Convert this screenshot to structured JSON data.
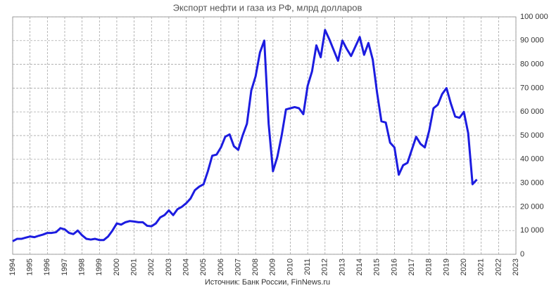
{
  "chart_data": {
    "type": "line",
    "title": "Экспорт нефти и газа из РФ, млрд долларов",
    "source": "Источник: Банк России, FinNews.ru",
    "x": [
      1994,
      1994.25,
      1994.5,
      1994.75,
      1995,
      1995.25,
      1995.5,
      1995.75,
      1996,
      1996.25,
      1996.5,
      1996.75,
      1997,
      1997.25,
      1997.5,
      1997.75,
      1998,
      1998.25,
      1998.5,
      1998.75,
      1999,
      1999.25,
      1999.5,
      1999.75,
      2000,
      2000.25,
      2000.5,
      2000.75,
      2001,
      2001.25,
      2001.5,
      2001.75,
      2002,
      2002.25,
      2002.5,
      2002.75,
      2003,
      2003.25,
      2003.5,
      2003.75,
      2004,
      2004.25,
      2004.5,
      2004.75,
      2005,
      2005.25,
      2005.5,
      2005.75,
      2006,
      2006.25,
      2006.5,
      2006.75,
      2007,
      2007.25,
      2007.5,
      2007.75,
      2008,
      2008.25,
      2008.5,
      2008.75,
      2009,
      2009.25,
      2009.5,
      2009.75,
      2010,
      2010.25,
      2010.5,
      2010.75,
      2011,
      2011.25,
      2011.5,
      2011.75,
      2012,
      2012.25,
      2012.5,
      2012.75,
      2013,
      2013.25,
      2013.5,
      2013.75,
      2014,
      2014.25,
      2014.5,
      2014.75,
      2015,
      2015.25,
      2015.5,
      2015.75,
      2016,
      2016.25,
      2016.5,
      2016.75,
      2017,
      2017.25,
      2017.5,
      2017.75,
      2018,
      2018.25,
      2018.5,
      2018.75,
      2019,
      2019.25,
      2019.5,
      2019.75,
      2020,
      2020.25,
      2020.5,
      2020.75
    ],
    "series": [
      {
        "name": "Экспорт нефти и газа",
        "color": "#1c1ce0",
        "values": [
          5500,
          6500,
          6500,
          7000,
          7500,
          7200,
          7800,
          8300,
          9000,
          9000,
          9300,
          11000,
          10500,
          9000,
          8500,
          10000,
          8000,
          6500,
          6200,
          6500,
          6000,
          6000,
          7500,
          10000,
          13000,
          12500,
          13500,
          14000,
          13800,
          13500,
          13500,
          12000,
          11800,
          13000,
          15500,
          16500,
          18500,
          16500,
          19000,
          20000,
          21500,
          23500,
          27000,
          28500,
          29500,
          35000,
          41500,
          42000,
          45000,
          49500,
          50500,
          45500,
          44000,
          50000,
          55000,
          69000,
          75000,
          85000,
          90000,
          55000,
          35000,
          41000,
          50000,
          61000,
          61500,
          62000,
          61500,
          59000,
          71000,
          77000,
          88000,
          83000,
          94500,
          90500,
          86000,
          81500,
          90000,
          86500,
          83500,
          87500,
          91500,
          84000,
          89000,
          82000,
          68000,
          56000,
          55500,
          47000,
          45000,
          33500,
          37500,
          38500,
          44000,
          49500,
          46500,
          45000,
          52000,
          61500,
          63000,
          67500,
          70000,
          63500,
          58000,
          57500,
          60000,
          51000,
          29500,
          31500
        ]
      }
    ],
    "xlim": [
      1994,
      2023
    ],
    "xticks": [
      1994,
      1995,
      1996,
      1997,
      1998,
      1999,
      2000,
      2001,
      2002,
      2003,
      2004,
      2005,
      2006,
      2007,
      2008,
      2009,
      2010,
      2011,
      2012,
      2013,
      2014,
      2015,
      2016,
      2017,
      2018,
      2019,
      2020,
      2021,
      2022,
      2023
    ],
    "ylim": [
      0,
      100000
    ],
    "yticks": [
      0,
      {
        "value": 10000,
        "label": "10 000"
      },
      {
        "value": 20000,
        "label": "20 000"
      },
      {
        "value": 30000,
        "label": "30 000"
      },
      {
        "value": 40000,
        "label": "40 000"
      },
      {
        "value": 50000,
        "label": "50 000"
      },
      {
        "value": 60000,
        "label": "60 000"
      },
      {
        "value": 70000,
        "label": "70 000"
      },
      {
        "value": 80000,
        "label": "80 000"
      },
      {
        "value": 90000,
        "label": "90 000"
      },
      {
        "value": 100000,
        "label": "100 000"
      }
    ],
    "grid": true
  }
}
